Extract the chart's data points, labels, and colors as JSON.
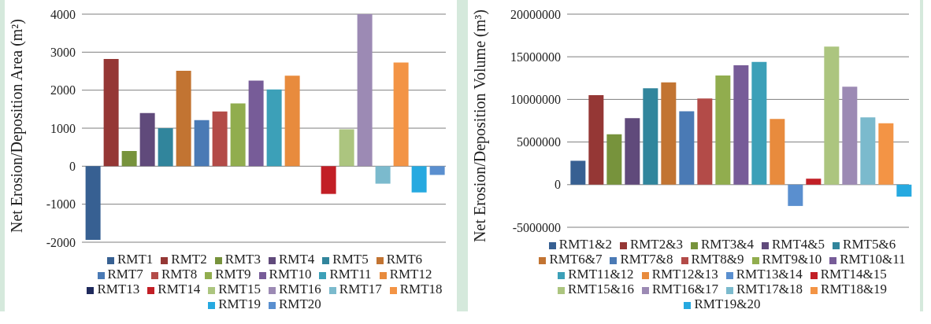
{
  "chart_data": [
    {
      "type": "bar",
      "ylabel": "Net Erosion/Deposition Area (m²)",
      "categories": [
        null
      ],
      "ylim": [
        -2000,
        4000
      ],
      "yticks": [
        -2000,
        -1000,
        0,
        1000,
        2000,
        3000,
        4000
      ],
      "grid": "y",
      "legend": "bottom",
      "series": [
        {
          "name": "RMT1",
          "color": "#376092",
          "values": [
            -1940
          ]
        },
        {
          "name": "RMT2",
          "color": "#953735",
          "values": [
            2820
          ]
        },
        {
          "name": "RMT3",
          "color": "#77933c",
          "values": [
            400
          ]
        },
        {
          "name": "RMT4",
          "color": "#604a7b",
          "values": [
            1400
          ]
        },
        {
          "name": "RMT5",
          "color": "#31859c",
          "values": [
            1000
          ]
        },
        {
          "name": "RMT6",
          "color": "#c27432",
          "values": [
            2510
          ]
        },
        {
          "name": "RMT7",
          "color": "#4a7ab5",
          "values": [
            1210
          ]
        },
        {
          "name": "RMT8",
          "color": "#b34b48",
          "values": [
            1440
          ]
        },
        {
          "name": "RMT9",
          "color": "#91ad4e",
          "values": [
            1650
          ]
        },
        {
          "name": "RMT10",
          "color": "#775c98",
          "values": [
            2250
          ]
        },
        {
          "name": "RMT11",
          "color": "#3ca0b8",
          "values": [
            2020
          ]
        },
        {
          "name": "RMT12",
          "color": "#e88b3d",
          "values": [
            2380
          ]
        },
        {
          "name": "RMT13",
          "color": "#1f2a5c",
          "values": [
            0
          ]
        },
        {
          "name": "RMT14",
          "color": "#c21f26",
          "values": [
            -730
          ]
        },
        {
          "name": "RMT15",
          "color": "#acc57f",
          "values": [
            970
          ]
        },
        {
          "name": "RMT16",
          "color": "#9c8ab4",
          "values": [
            4000
          ]
        },
        {
          "name": "RMT17",
          "color": "#7bbacd",
          "values": [
            -460
          ]
        },
        {
          "name": "RMT18",
          "color": "#f39445",
          "values": [
            2730
          ]
        },
        {
          "name": "RMT19",
          "color": "#26a9e0",
          "values": [
            -690
          ]
        },
        {
          "name": "RMT20",
          "color": "#5a8fcf",
          "values": [
            -230
          ]
        }
      ]
    },
    {
      "type": "bar",
      "ylabel": "Net Erosion/Deposition Volume (m³)",
      "categories": [
        null
      ],
      "ylim": [
        -5000000,
        20000000
      ],
      "yticks": [
        -5000000,
        0,
        5000000,
        10000000,
        15000000,
        20000000
      ],
      "grid": "y",
      "legend": "bottom",
      "series": [
        {
          "name": "RMT1&2",
          "color": "#376092",
          "values": [
            2800000
          ]
        },
        {
          "name": "RMT2&3",
          "color": "#953735",
          "values": [
            10500000
          ]
        },
        {
          "name": "RMT3&4",
          "color": "#77933c",
          "values": [
            5900000
          ]
        },
        {
          "name": "RMT4&5",
          "color": "#604a7b",
          "values": [
            7800000
          ]
        },
        {
          "name": "RMT5&6",
          "color": "#31859c",
          "values": [
            11300000
          ]
        },
        {
          "name": "RMT6&7",
          "color": "#c27432",
          "values": [
            12000000
          ]
        },
        {
          "name": "RMT7&8",
          "color": "#4a7ab5",
          "values": [
            8600000
          ]
        },
        {
          "name": "RMT8&9",
          "color": "#b34b48",
          "values": [
            10100000
          ]
        },
        {
          "name": "RMT9&10",
          "color": "#91ad4e",
          "values": [
            12800000
          ]
        },
        {
          "name": "RMT10&11",
          "color": "#775c98",
          "values": [
            14000000
          ]
        },
        {
          "name": "RMT11&12",
          "color": "#3ca0b8",
          "values": [
            14400000
          ]
        },
        {
          "name": "RMT12&13",
          "color": "#e88b3d",
          "values": [
            7700000
          ]
        },
        {
          "name": "RMT13&14",
          "color": "#5a8fcf",
          "values": [
            -2500000
          ]
        },
        {
          "name": "RMT14&15",
          "color": "#c21f26",
          "values": [
            700000
          ]
        },
        {
          "name": "RMT15&16",
          "color": "#acc57f",
          "values": [
            16200000
          ]
        },
        {
          "name": "RMT16&17",
          "color": "#9c8ab4",
          "values": [
            11500000
          ]
        },
        {
          "name": "RMT17&18",
          "color": "#7bbacd",
          "values": [
            7900000
          ]
        },
        {
          "name": "RMT18&19",
          "color": "#f39445",
          "values": [
            7200000
          ]
        },
        {
          "name": "RMT19&20",
          "color": "#26a9e0",
          "values": [
            -1400000
          ]
        }
      ]
    }
  ]
}
